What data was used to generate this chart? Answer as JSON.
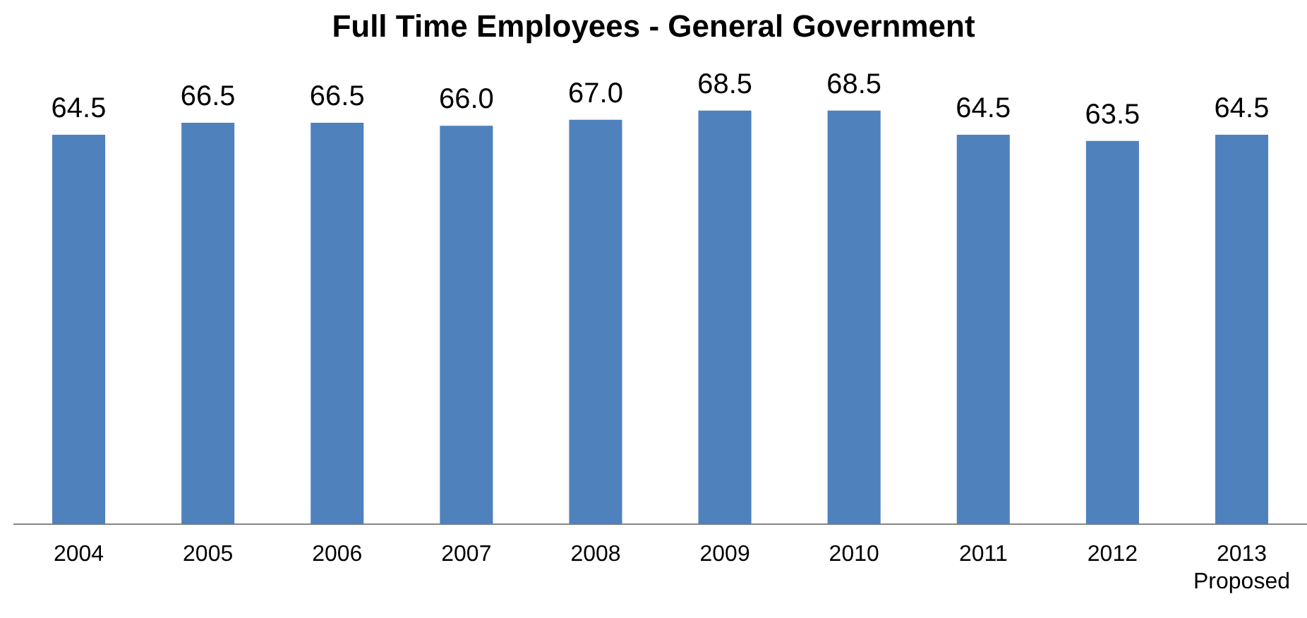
{
  "chart_data": {
    "type": "bar",
    "title": "Full Time Employees - General Government",
    "categories": [
      "2004",
      "2005",
      "2006",
      "2007",
      "2008",
      "2009",
      "2010",
      "2011",
      "2012",
      "2013\nProposed"
    ],
    "values": [
      64.5,
      66.5,
      66.5,
      66.0,
      67.0,
      68.5,
      68.5,
      64.5,
      63.5,
      64.5
    ],
    "value_labels": [
      "64.5",
      "66.5",
      "66.5",
      "66.0",
      "67.0",
      "68.5",
      "68.5",
      "64.5",
      "63.5",
      "64.5"
    ],
    "color": "#4f81bd",
    "tick_labels": "x",
    "grid": false,
    "legend": false
  }
}
